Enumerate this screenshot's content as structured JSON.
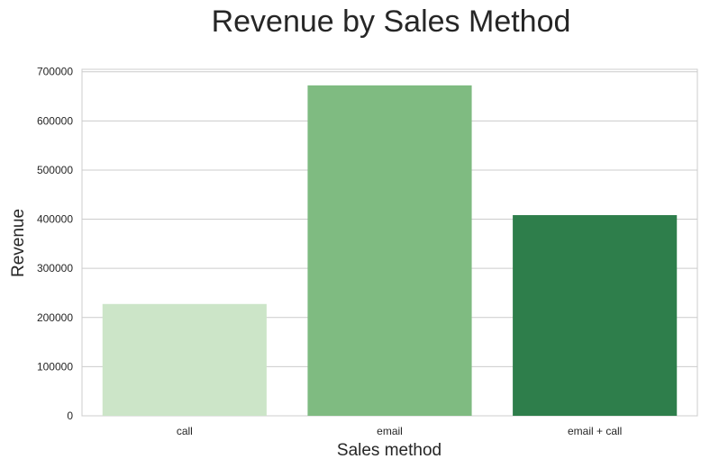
{
  "chart_data": {
    "type": "bar",
    "title": "Revenue by Sales Method",
    "xlabel": "Sales method",
    "ylabel": "Revenue",
    "categories": [
      "call",
      "email",
      "email + call"
    ],
    "values": [
      227500,
      672300,
      408300
    ],
    "ylim": [
      0,
      705000
    ],
    "yticks": [
      0,
      100000,
      200000,
      300000,
      400000,
      500000,
      600000,
      700000
    ],
    "ytick_labels": [
      "0",
      "100000",
      "200000",
      "300000",
      "400000",
      "500000",
      "600000",
      "700000"
    ],
    "colors": [
      "#cce5c8",
      "#7fbb81",
      "#2e7e4b"
    ],
    "grid": true,
    "legend": "none"
  }
}
